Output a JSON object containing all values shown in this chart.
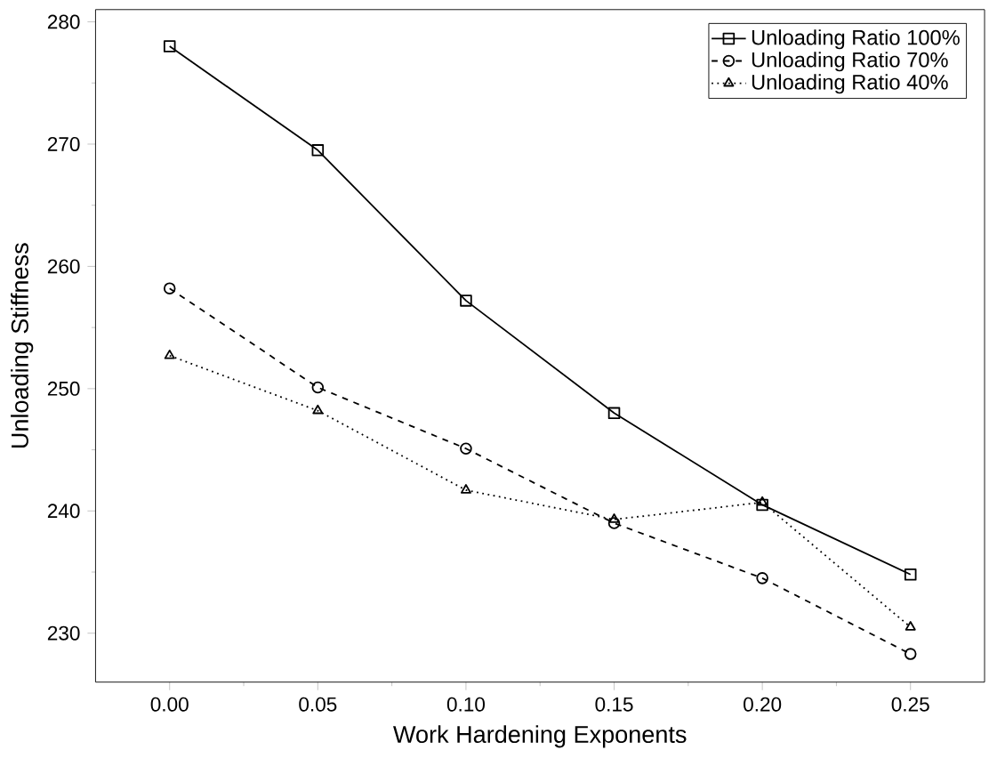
{
  "chart_data": {
    "type": "line",
    "xlabel": "Work Hardening Exponents",
    "ylabel": "Unloading Stiffness",
    "x": [
      0.0,
      0.05,
      0.1,
      0.15,
      0.2,
      0.25
    ],
    "series": [
      {
        "name": "Unloading Ratio 100%",
        "color": "#000000",
        "marker": "square",
        "line_style": "solid",
        "values": [
          278,
          269.5,
          257.2,
          248,
          240.5,
          234.8
        ]
      },
      {
        "name": "Unloading Ratio 70%",
        "color": "#000000",
        "marker": "circle",
        "line_style": "dashed",
        "values": [
          258.2,
          250.1,
          245.1,
          239,
          234.5,
          228.3
        ]
      },
      {
        "name": "Unloading Ratio 40%",
        "color": "#000000",
        "marker": "triangle",
        "line_style": "dotted",
        "values": [
          252.7,
          248.2,
          241.7,
          239.3,
          240.7,
          230.5
        ]
      }
    ],
    "xlim": [
      -0.025,
      0.275
    ],
    "ylim": [
      226,
      281
    ],
    "xticks": [
      {
        "value": 0,
        "label": "0.00"
      },
      {
        "value": 0.05,
        "label": "0.05"
      },
      {
        "value": 0.1,
        "label": "0.10"
      },
      {
        "value": 0.15,
        "label": "0.15"
      },
      {
        "value": 0.2,
        "label": "0.20"
      },
      {
        "value": 0.25,
        "label": "0.25"
      }
    ],
    "yticks": [
      230,
      240,
      250,
      260,
      270,
      280
    ],
    "legend": "top right",
    "grid": false
  }
}
